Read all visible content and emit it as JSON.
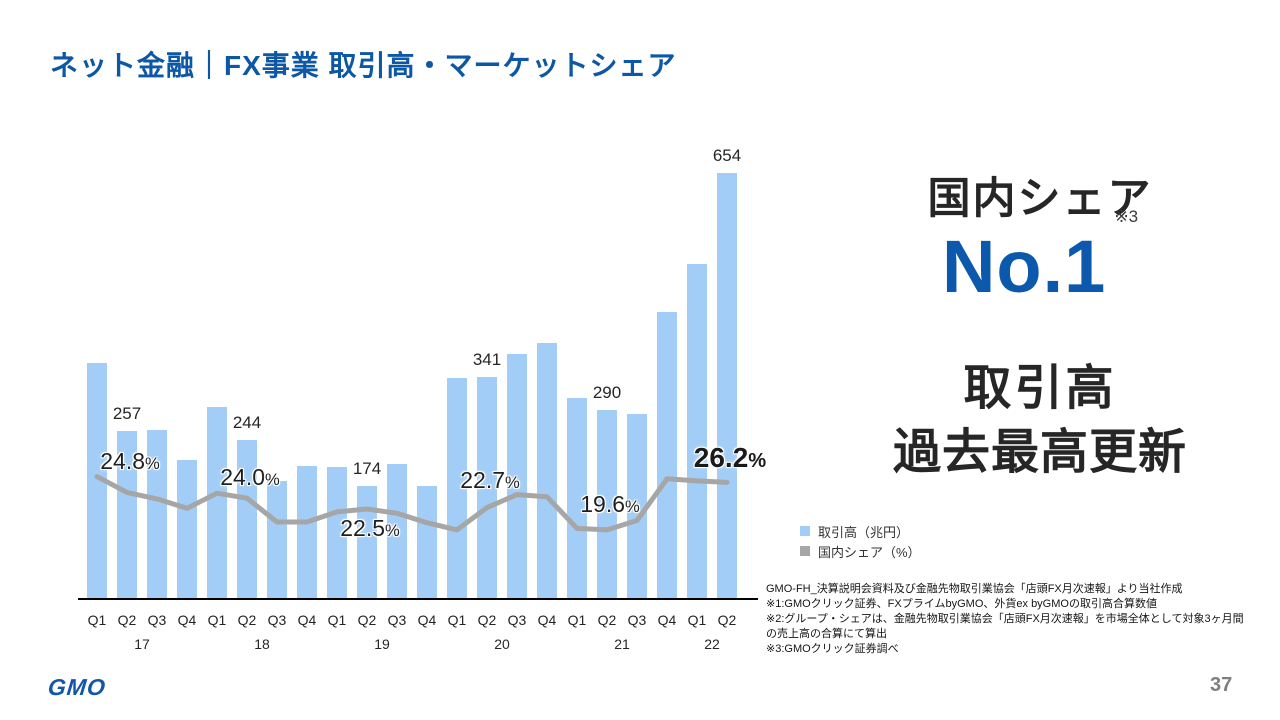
{
  "slide": {
    "title": "ネット金融｜FX事業 取引高・マーケットシェア",
    "page_number": "37",
    "logo_text": "GMO"
  },
  "highlight": {
    "share_heading": "国内シェア",
    "share_value": "No.1",
    "share_footnote_ref": "※3",
    "volume_line1": "取引高",
    "volume_line2": "過去最高更新"
  },
  "legend": {
    "items": [
      {
        "label": "取引高（兆円）",
        "color": "#a2cdf6"
      },
      {
        "label": "国内シェア（%）",
        "color": "#a6a6a6"
      }
    ]
  },
  "footnotes": {
    "lines": [
      "GMO-FH_決算説明会資料及び金融先物取引業協会「店頭FX月次速報」より当社作成",
      "※1:GMOクリック証券、FXプライムbyGMO、外貨ex byGMOの取引高合算数値",
      "※2:グループ・シェアは、金融先物取引業協会「店頭FX月次速報」を市場全体として対象3ヶ月間",
      "の売上高の合算にて算出",
      "※3:GMOクリック証券調べ"
    ]
  },
  "chart_data": {
    "type": "combo",
    "x_quarter_labels": [
      "Q1",
      "Q2",
      "Q3",
      "Q4",
      "Q1",
      "Q2",
      "Q3",
      "Q4",
      "Q1",
      "Q2",
      "Q3",
      "Q4",
      "Q1",
      "Q2",
      "Q3",
      "Q4",
      "Q1",
      "Q2",
      "Q3",
      "Q4",
      "Q1",
      "Q2"
    ],
    "x_year_labels": [
      "17",
      "18",
      "19",
      "20",
      "21",
      "22"
    ],
    "series": [
      {
        "name": "取引高（兆円）",
        "type": "bar",
        "color": "#a2cdf6",
        "values": [
          362,
          257,
          260,
          214,
          295,
          244,
          181,
          204,
          203,
          174,
          207,
          173,
          339,
          341,
          376,
          392,
          309,
          290,
          284,
          441,
          514,
          654
        ]
      },
      {
        "name": "国内シェア（%）",
        "type": "line",
        "color": "#a6a6a6",
        "values": [
          27.0,
          24.8,
          23.9,
          22.6,
          24.7,
          24.0,
          20.7,
          20.7,
          22.1,
          22.5,
          21.9,
          20.6,
          19.6,
          22.7,
          24.5,
          24.2,
          19.8,
          19.6,
          20.9,
          26.7,
          26.4,
          26.2
        ]
      }
    ],
    "bar_value_labels": [
      {
        "index": 1,
        "text": "257"
      },
      {
        "index": 5,
        "text": "244"
      },
      {
        "index": 9,
        "text": "174"
      },
      {
        "index": 13,
        "text": "341"
      },
      {
        "index": 17,
        "text": "290"
      },
      {
        "index": 21,
        "text": "654"
      }
    ],
    "share_point_labels": [
      {
        "index": 1,
        "text": "24.8",
        "offset_y": -31,
        "emphasis": false
      },
      {
        "index": 5,
        "text": "24.0",
        "offset_y": -21,
        "emphasis": false
      },
      {
        "index": 9,
        "text": "22.5",
        "offset_y": 19,
        "emphasis": false
      },
      {
        "index": 13,
        "text": "22.7",
        "offset_y": -28,
        "emphasis": false
      },
      {
        "index": 17,
        "text": "19.6",
        "offset_y": -26,
        "emphasis": false
      },
      {
        "index": 21,
        "text": "26.2",
        "offset_y": -24,
        "emphasis": true
      }
    ],
    "percent_suffix": "%",
    "ylim_bars": [
      0,
      700
    ],
    "grid": false,
    "legend_position": "right-bottom"
  }
}
